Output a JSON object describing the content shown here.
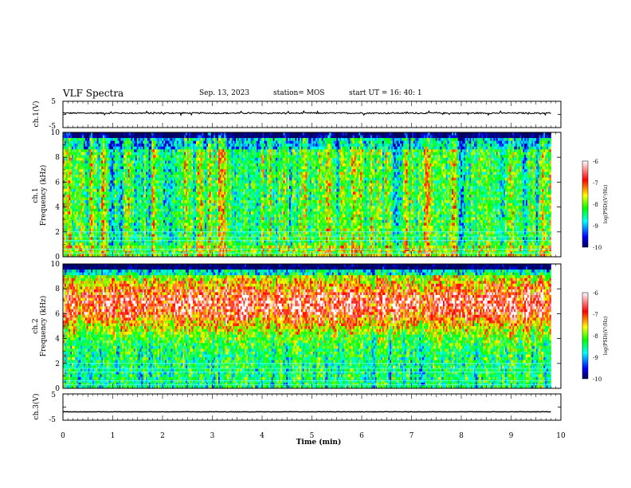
{
  "header": {
    "title": "VLF Spectra",
    "date": "Sep. 13, 2023",
    "station": "station= MOS",
    "start": "start UT =  16: 40: 1"
  },
  "chart_data": [
    {
      "type": "line",
      "panel": "ch1-waveform",
      "ylabel": "ch.1(V)",
      "yticks": [
        "5",
        "-5"
      ],
      "ylim": [
        -5,
        5
      ],
      "xlim": [
        0,
        10
      ],
      "trace_level": 0.5
    },
    {
      "type": "heatmap",
      "panel": "ch1-spectrogram",
      "ylabel_top": "ch.1",
      "ylabel": "Frequency (kHz)",
      "yticks": [
        "0",
        "2",
        "4",
        "6",
        "8",
        "10"
      ],
      "ylim": [
        0,
        10
      ],
      "xlim": [
        0,
        9.8
      ],
      "colorbar": {
        "label": "log(PSD)(V²/Hz)",
        "ticks": [
          "-6",
          "-7",
          "-8",
          "-9",
          "-10"
        ],
        "range": [
          -10,
          -6
        ]
      }
    },
    {
      "type": "heatmap",
      "panel": "ch2-spectrogram",
      "ylabel_top": "ch.2",
      "ylabel": "Frequency (kHz)",
      "yticks": [
        "0",
        "2",
        "4",
        "6",
        "8",
        "10"
      ],
      "ylim": [
        0,
        10
      ],
      "xlim": [
        0,
        9.8
      ],
      "colorbar": {
        "label": "log(PSD)(V²/Hz)",
        "ticks": [
          "-6",
          "-7",
          "-8",
          "-9",
          "-10"
        ],
        "range": [
          -10,
          -6
        ]
      }
    },
    {
      "type": "line",
      "panel": "ch3-waveform",
      "ylabel": "ch.3(V)",
      "yticks": [
        "5",
        "-5"
      ],
      "ylim": [
        -5,
        5
      ],
      "xlim": [
        0,
        10
      ],
      "trace_level": -1.8
    }
  ],
  "xaxis": {
    "label": "Time (min)",
    "ticks": [
      "0",
      "1",
      "2",
      "3",
      "4",
      "5",
      "6",
      "7",
      "8",
      "9",
      "10"
    ],
    "range": [
      0,
      10
    ]
  },
  "colors": {
    "colormap": [
      "#000066",
      "#0000ff",
      "#00ffff",
      "#00ff00",
      "#ffff00",
      "#ff0000",
      "#ffffff"
    ],
    "trace": "#000000"
  }
}
